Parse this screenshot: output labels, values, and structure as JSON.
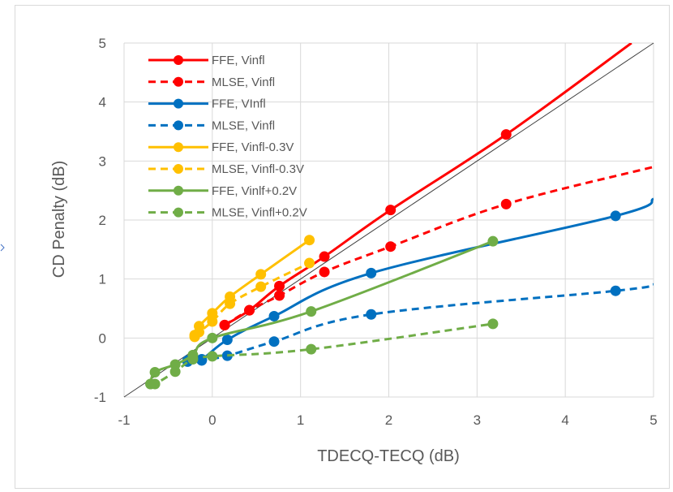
{
  "chart_data": {
    "type": "line",
    "title": "",
    "xlabel": "TDECQ-TECQ (dB)",
    "ylabel": "CD Penalty (dB)",
    "xlim": [
      -1,
      5
    ],
    "ylim": [
      -1,
      5
    ],
    "x_ticks": [
      "-1",
      "0",
      "1",
      "2",
      "3",
      "4",
      "5"
    ],
    "y_ticks": [
      "-1",
      "0",
      "1",
      "2",
      "3",
      "4",
      "5"
    ],
    "grid": true,
    "legend_position": "top-left",
    "reference_line": {
      "x": [
        -1,
        5
      ],
      "y": [
        -1,
        5
      ],
      "color": "#404040"
    },
    "series": [
      {
        "name": "FFE, Vinfl",
        "color": "#ff0000",
        "dash": "solid",
        "x": [
          0.14,
          0.42,
          0.76,
          1.27,
          2.02,
          3.33
        ],
        "y": [
          0.22,
          0.47,
          0.88,
          1.38,
          2.17,
          3.45
        ],
        "curve_end": [
          4.75,
          5.0
        ]
      },
      {
        "name": "MLSE, Vinfl",
        "color": "#ff0000",
        "dash": "dashed",
        "x": [
          0.14,
          0.42,
          0.76,
          1.27,
          2.02,
          3.33
        ],
        "y": [
          0.22,
          0.47,
          0.72,
          1.12,
          1.55,
          2.27
        ],
        "curve_end": [
          5.0,
          2.9
        ]
      },
      {
        "name": "FFE, VInfl",
        "color": "#0070c0",
        "dash": "solid",
        "x": [
          -0.28,
          -0.12,
          0.17,
          0.7,
          1.8,
          4.57
        ],
        "y": [
          -0.38,
          -0.36,
          -0.03,
          0.37,
          1.1,
          2.07
        ],
        "curve_end": [
          5.0,
          2.36
        ]
      },
      {
        "name": "MLSE, Vinfl",
        "color": "#0070c0",
        "dash": "dashed",
        "x": [
          -0.28,
          -0.12,
          0.17,
          0.7,
          1.8,
          4.57
        ],
        "y": [
          -0.4,
          -0.38,
          -0.3,
          -0.06,
          0.4,
          0.8
        ],
        "curve_end": [
          5.0,
          0.91
        ]
      },
      {
        "name": "FFE, Vinfl-0.3V",
        "color": "#ffc000",
        "dash": "solid",
        "x": [
          -0.2,
          -0.15,
          0.0,
          0.2,
          0.55,
          1.1
        ],
        "y": [
          0.05,
          0.2,
          0.42,
          0.7,
          1.08,
          1.66
        ]
      },
      {
        "name": "MLSE, Vinfl-0.3V",
        "color": "#ffc000",
        "dash": "dashed",
        "x": [
          -0.2,
          -0.15,
          0.0,
          0.2,
          0.55,
          1.1
        ],
        "y": [
          0.02,
          0.1,
          0.28,
          0.58,
          0.87,
          1.27
        ]
      },
      {
        "name": "FFE, Vinlf+0.2V",
        "color": "#70ad47",
        "dash": "solid",
        "x": [
          -0.7,
          -0.65,
          -0.42,
          -0.22,
          0.0,
          1.12,
          3.18
        ],
        "y": [
          -0.78,
          -0.58,
          -0.45,
          -0.29,
          0.0,
          0.45,
          1.64
        ]
      },
      {
        "name": "MLSE, Vinfl+0.2V",
        "color": "#70ad47",
        "dash": "dashed",
        "x": [
          -0.7,
          -0.65,
          -0.42,
          -0.22,
          0.0,
          1.12,
          3.18
        ],
        "y": [
          -0.78,
          -0.78,
          -0.57,
          -0.36,
          -0.31,
          -0.19,
          0.24
        ]
      }
    ]
  },
  "colors": {
    "grid": "#d9d9d9",
    "text": "#595959",
    "stray_arrow": "#4472c4"
  }
}
